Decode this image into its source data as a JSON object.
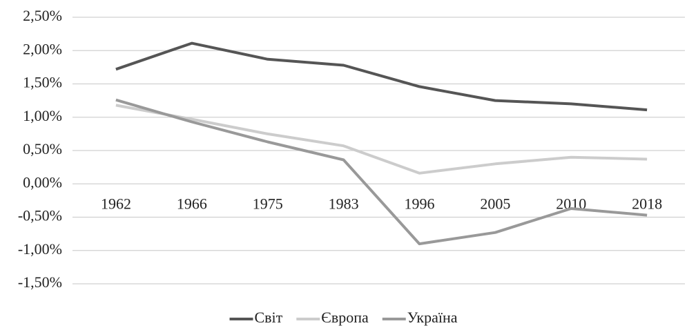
{
  "chart_data": {
    "type": "line",
    "categories": [
      "1962",
      "1966",
      "1975",
      "1983",
      "1996",
      "2005",
      "2010",
      "2018"
    ],
    "series": [
      {
        "name": "Світ",
        "color": "#555555",
        "values": [
          1.72,
          2.11,
          1.87,
          1.78,
          1.46,
          1.25,
          1.2,
          1.11
        ]
      },
      {
        "name": "Європа",
        "color": "#cccccc",
        "values": [
          1.18,
          0.97,
          0.75,
          0.57,
          0.16,
          0.3,
          0.4,
          0.37
        ]
      },
      {
        "name": "Україна",
        "color": "#999999",
        "values": [
          1.26,
          0.93,
          0.63,
          0.36,
          -0.9,
          -0.73,
          -0.37,
          -0.47
        ]
      }
    ],
    "ylim": [
      -1.5,
      2.5
    ],
    "yticks": [
      {
        "value": -1.5,
        "label": "-1,50%"
      },
      {
        "value": -1,
        "label": "-1,00%"
      },
      {
        "value": -0.5,
        "label": "-0,50%"
      },
      {
        "value": 0,
        "label": "0,00%"
      },
      {
        "value": 0.5,
        "label": "0,50%"
      },
      {
        "value": 1,
        "label": "1,00%"
      },
      {
        "value": 1.5,
        "label": "1,50%"
      },
      {
        "value": 2,
        "label": "2,00%"
      },
      {
        "value": 2.5,
        "label": "2,50%"
      }
    ],
    "grid": true,
    "legend": "bottom"
  }
}
